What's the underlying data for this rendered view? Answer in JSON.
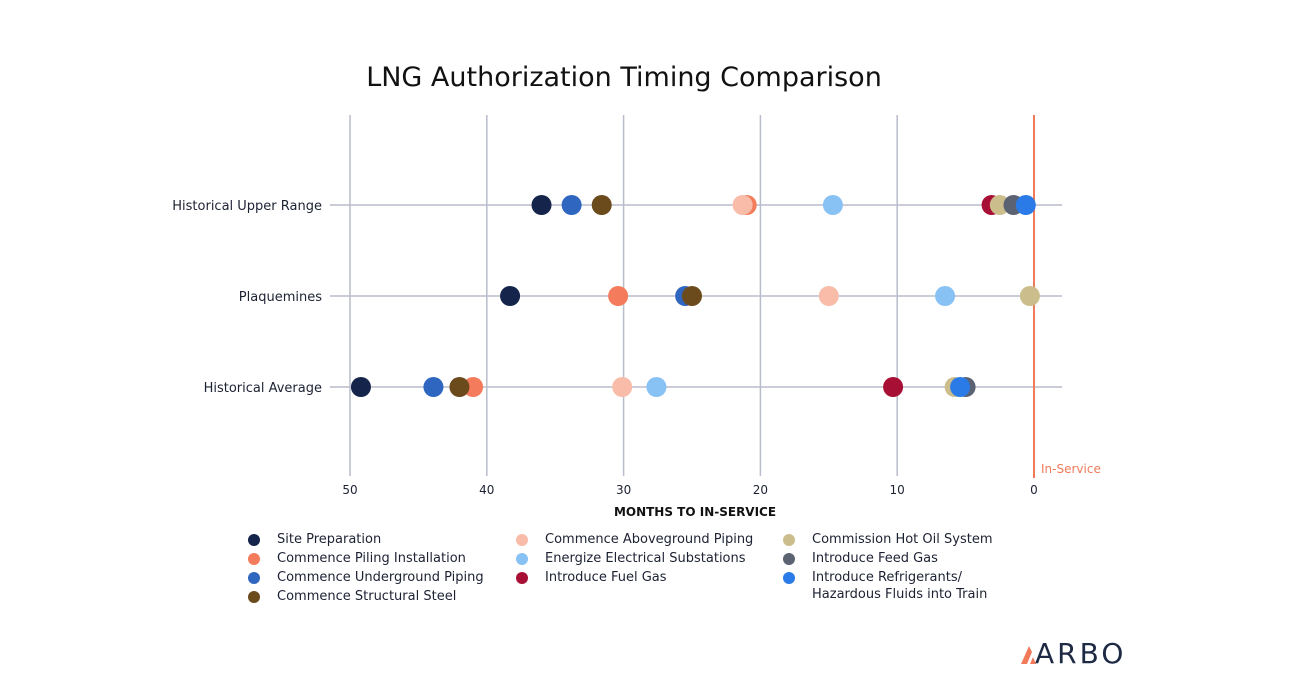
{
  "chart_data": {
    "type": "scatter",
    "title": "LNG Authorization Timing Comparison",
    "xlabel": "MONTHS TO IN-SERVICE",
    "xlim": [
      50,
      0
    ],
    "x_ticks": [
      "50",
      "40",
      "30",
      "20",
      "10",
      "0"
    ],
    "categories": [
      "Historical Upper Range",
      "Plaquemines",
      "Historical Average"
    ],
    "reference_line": {
      "x": 0,
      "label": "In-Service",
      "color": "#f07a5a"
    },
    "grid": true,
    "legend_position": "bottom",
    "series": [
      {
        "name": "Site Preparation",
        "color": "#14244a",
        "values": [
          36,
          38.3,
          49.2
        ]
      },
      {
        "name": "Commence Piling Installation",
        "color": "#f47b5b",
        "values": [
          21,
          30.4,
          41
        ]
      },
      {
        "name": "Commence Underground Piping",
        "color": "#2f66c0",
        "values": [
          33.8,
          25.5,
          43.9
        ]
      },
      {
        "name": "Commence Structural Steel",
        "color": "#6b4a1c",
        "values": [
          31.6,
          25,
          42
        ]
      },
      {
        "name": "Commence Aboveground Piping",
        "color": "#f8bca9",
        "values": [
          21.3,
          15,
          30.1
        ]
      },
      {
        "name": "Energize Electrical Substations",
        "color": "#88c2f5",
        "values": [
          14.7,
          6.5,
          27.6
        ]
      },
      {
        "name": "Introduce Fuel Gas",
        "color": "#a80f35",
        "values": [
          3.1,
          null,
          10.3
        ]
      },
      {
        "name": "Commission Hot Oil System",
        "color": "#cbbd8c",
        "values": [
          2.5,
          0.3,
          5.8
        ]
      },
      {
        "name": "Introduce Feed Gas",
        "color": "#5b6373",
        "values": [
          1.5,
          null,
          5.0
        ]
      },
      {
        "name": "Introduce Refrigerants/ Hazardous Fluids into Train",
        "color": "#2a7be8",
        "values": [
          0.6,
          null,
          5.4
        ]
      }
    ]
  },
  "legend": {
    "items": [
      {
        "label": "Site Preparation",
        "color": "#14244a"
      },
      {
        "label": "Commence Piling Installation",
        "color": "#f47b5b"
      },
      {
        "label": "Commence Underground Piping",
        "color": "#2f66c0"
      },
      {
        "label": "Commence Structural Steel",
        "color": "#6b4a1c"
      },
      {
        "label": "Commence Aboveground Piping",
        "color": "#f8bca9"
      },
      {
        "label": "Energize Electrical Substations",
        "color": "#88c2f5"
      },
      {
        "label": "Introduce Fuel Gas",
        "color": "#a80f35"
      },
      {
        "label": "Commission Hot Oil System",
        "color": "#cbbd8c"
      },
      {
        "label": "Introduce Feed Gas",
        "color": "#5b6373"
      },
      {
        "label": "Introduce Refrigerants/",
        "label2": "Hazardous Fluids into Train",
        "color": "#2a7be8"
      }
    ]
  },
  "brand": {
    "logo_text": "ARBO",
    "logo_color": "#1e2a44",
    "logo_accent": "#f07a5a"
  }
}
